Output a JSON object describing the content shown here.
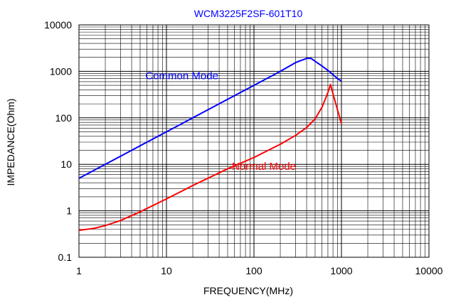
{
  "chart_data": {
    "type": "line",
    "title": "WCM3225F2SF-601T10",
    "xlabel": "FREQUENCY(MHz)",
    "ylabel": "IMPEDANCE(Ohm)",
    "xscale": "log",
    "yscale": "log",
    "xlim": [
      1,
      10000
    ],
    "ylim": [
      0.1,
      10000
    ],
    "xticks": [
      "1",
      "10",
      "100",
      "1000",
      "10000"
    ],
    "yticks": [
      "0.1",
      "1",
      "10",
      "100",
      "1000",
      "10000"
    ],
    "grid": true,
    "legend": "none",
    "series": [
      {
        "name": "Common Mode",
        "color": "#0000ff",
        "points": [
          [
            1,
            5
          ],
          [
            2,
            10
          ],
          [
            5,
            25
          ],
          [
            10,
            50
          ],
          [
            20,
            100
          ],
          [
            50,
            250
          ],
          [
            100,
            500
          ],
          [
            200,
            1000
          ],
          [
            300,
            1550
          ],
          [
            400,
            1900
          ],
          [
            450,
            1900
          ],
          [
            500,
            1650
          ],
          [
            600,
            1300
          ],
          [
            700,
            1050
          ],
          [
            800,
            850
          ],
          [
            900,
            700
          ],
          [
            1000,
            620
          ]
        ]
      },
      {
        "name": "Normal Mode",
        "color": "#ff0000",
        "points": [
          [
            1,
            0.38
          ],
          [
            1.5,
            0.42
          ],
          [
            2,
            0.48
          ],
          [
            3,
            0.62
          ],
          [
            5,
            0.95
          ],
          [
            10,
            1.8
          ],
          [
            20,
            3.5
          ],
          [
            50,
            8
          ],
          [
            100,
            14
          ],
          [
            200,
            27
          ],
          [
            300,
            42
          ],
          [
            400,
            62
          ],
          [
            500,
            95
          ],
          [
            600,
            170
          ],
          [
            700,
            350
          ],
          [
            750,
            520
          ],
          [
            800,
            330
          ],
          [
            900,
            150
          ],
          [
            1000,
            75
          ]
        ]
      }
    ],
    "annotations": [
      {
        "text": "Common Mode",
        "color": "#0000ff",
        "x": 15,
        "y": 800
      },
      {
        "text": "Normal Mode",
        "color": "#ff0000",
        "x": 130,
        "y": 9
      }
    ]
  }
}
